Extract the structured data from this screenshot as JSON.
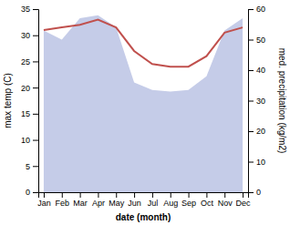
{
  "chart_data": {
    "type": "line",
    "categories": [
      "Jan",
      "Feb",
      "Mar",
      "Apr",
      "May",
      "Jun",
      "Jul",
      "Aug",
      "Sep",
      "Oct",
      "Nov",
      "Dec"
    ],
    "series": [
      {
        "type": "area",
        "axis": "y2",
        "color": "#c5cce8",
        "values": [
          53.0,
          50.0,
          57.0,
          58.0,
          54.0,
          36.0,
          33.5,
          33.0,
          33.5,
          38.0,
          53.0,
          57.0
        ]
      },
      {
        "type": "line",
        "color": "#c0504d",
        "values": [
          31.0,
          31.5,
          32.0,
          33.0,
          31.5,
          27.0,
          24.5,
          24.0,
          24.0,
          26.0,
          30.5,
          31.5
        ]
      }
    ],
    "xlabel": "date (month)",
    "ylabel": "max temp (C)",
    "y2label": "med. precipitation (kg/m2)",
    "ylim": [
      0,
      35
    ],
    "yticks": [
      0,
      5,
      10,
      15,
      20,
      25,
      30,
      35
    ],
    "y2lim": [
      0,
      60
    ],
    "y2ticks": [
      0,
      10,
      20,
      30,
      40,
      50,
      60
    ],
    "grid": false
  }
}
